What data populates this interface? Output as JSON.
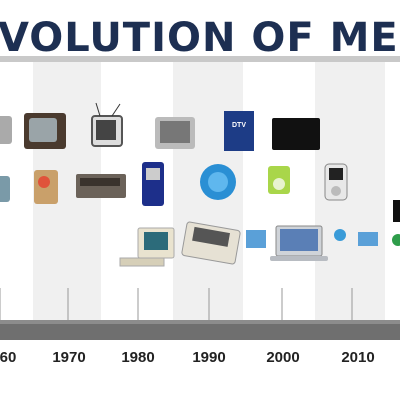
{
  "header": {
    "title": "VOLUTION OF ME"
  },
  "devices": [
    {
      "label": "DTV"
    }
  ],
  "timeline": {
    "labels": [
      "60",
      "1970",
      "1980",
      "1990",
      "2000",
      "2010"
    ]
  }
}
